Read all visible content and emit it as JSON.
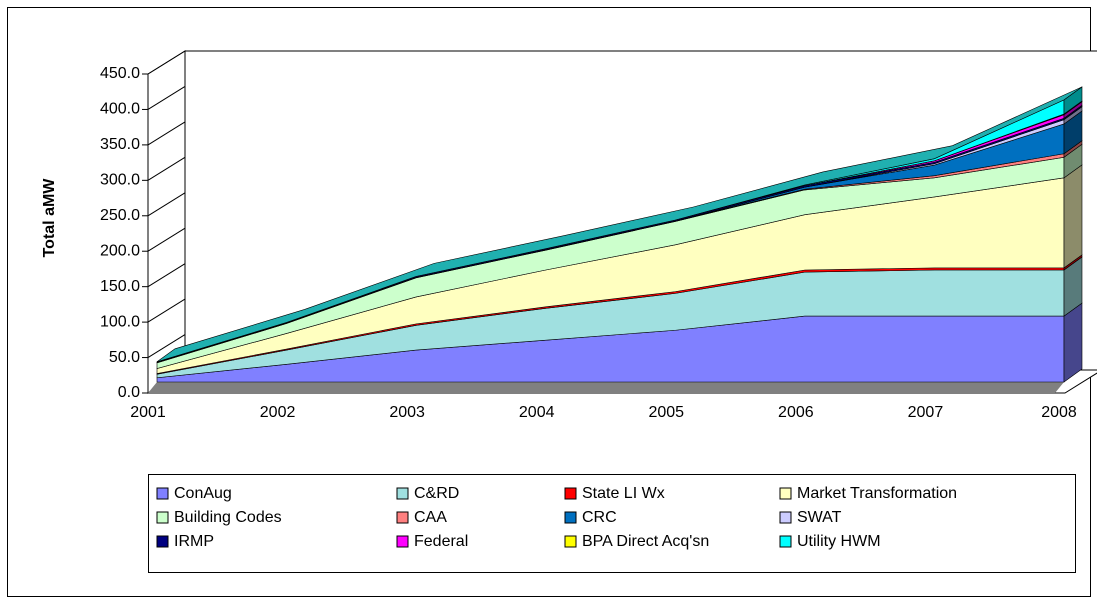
{
  "chart_data": {
    "type": "area3d",
    "y_label": "Total aMW",
    "categories": [
      "2001",
      "2002",
      "2003",
      "2004",
      "2005",
      "2006",
      "2007",
      "2008"
    ],
    "ylim": [
      0,
      450
    ],
    "yticks": [
      {
        "value": 0,
        "label": "0.0"
      },
      {
        "value": 50,
        "label": "50.0"
      },
      {
        "value": 100,
        "label": "100.0"
      },
      {
        "value": 150,
        "label": "150.0"
      },
      {
        "value": 200,
        "label": "200.0"
      },
      {
        "value": 250,
        "label": "250.0"
      },
      {
        "value": 300,
        "label": "300.0"
      },
      {
        "value": 350,
        "label": "350.0"
      },
      {
        "value": 400,
        "label": "400.0"
      },
      {
        "value": 450,
        "label": "450.0"
      }
    ],
    "stacked": true,
    "series": [
      {
        "name": "ConAug",
        "color": "#8080ff",
        "values": [
          6,
          25,
          45,
          59,
          73,
          93,
          93,
          93
        ]
      },
      {
        "name": "C&RD",
        "color": "#a0e0e0",
        "values": [
          5,
          20,
          35,
          45,
          52,
          62,
          65,
          65
        ]
      },
      {
        "name": "State LI Wx",
        "color": "#ff0000",
        "values": [
          1,
          1.5,
          2,
          2,
          2.5,
          3,
          3,
          3
        ]
      },
      {
        "name": "Market Transformation",
        "color": "#ffffc0",
        "values": [
          7,
          22,
          38,
          52,
          66,
          78,
          100,
          127
        ]
      },
      {
        "name": "Building Codes",
        "color": "#ccffcc",
        "values": [
          8,
          14,
          27,
          28,
          33,
          35,
          27,
          29
        ]
      },
      {
        "name": "CAA",
        "color": "#ff8080",
        "values": [
          0.5,
          0.5,
          0.5,
          0.5,
          0.5,
          1,
          3,
          5
        ]
      },
      {
        "name": "CRC",
        "color": "#0070c0",
        "values": [
          0,
          0,
          0,
          0,
          0,
          3,
          15,
          42
        ]
      },
      {
        "name": "SWAT",
        "color": "#ccccff",
        "values": [
          0,
          0,
          0,
          0,
          0,
          0,
          2,
          6
        ]
      },
      {
        "name": "IRMP",
        "color": "#000080",
        "values": [
          1,
          1,
          1.5,
          1.5,
          1.5,
          2,
          2,
          2
        ]
      },
      {
        "name": "Federal",
        "color": "#ff00ff",
        "values": [
          0,
          0,
          0,
          0,
          0,
          0,
          2,
          5
        ]
      },
      {
        "name": "BPA Direct Acq'sn",
        "color": "#ffff00",
        "values": [
          0,
          0,
          0,
          0,
          0,
          0,
          0,
          1
        ]
      },
      {
        "name": "Utility HWM",
        "color": "#00ffff",
        "values": [
          0,
          0,
          0,
          0,
          0,
          1,
          3,
          20
        ]
      }
    ]
  }
}
